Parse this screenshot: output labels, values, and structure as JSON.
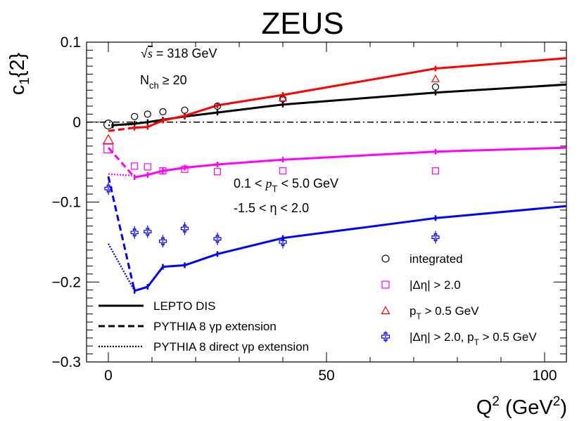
{
  "chart_data": {
    "type": "scatter",
    "title": "ZEUS",
    "xlabel": "Q",
    "xlabel_sup": "2",
    "xlabel_units": "(GeV",
    "xlabel_units_sup": "2",
    "xlabel_units_close": ")",
    "ylabel": "c",
    "ylabel_sub": "1",
    "ylabel_suffix": "{2}",
    "xlim": [
      -5,
      105
    ],
    "ylim": [
      -0.3,
      0.1
    ],
    "xticks": [
      0,
      50,
      100
    ],
    "yticks": [
      0.1,
      0,
      -0.1,
      -0.2,
      -0.3
    ],
    "xtick_labels": [
      "0",
      "50",
      "100"
    ],
    "ytick_labels": [
      "0.1",
      "0",
      "−0.1",
      "−0.2",
      "−0.3"
    ],
    "annotations": {
      "energy_prefix": "√",
      "energy_sym": "s",
      "energy_rest": " = 318 GeV",
      "nch_main": "N",
      "nch_sub": "ch",
      "nch_rest": " ≥ 20",
      "pt_range_left": "0.1 < ",
      "pt_range_sym": "p",
      "pt_range_sub": "T",
      "pt_range_right": " < 5.0 GeV",
      "eta_range": "-1.5 < η < 2.0"
    },
    "model_curves": [
      {
        "name": "LEPTO DIS",
        "style": "solid",
        "color": "#000000",
        "x": [
          1,
          6,
          9,
          12.5,
          17.5,
          25,
          40,
          75,
          105
        ],
        "y": [
          -0.004,
          -0.002,
          0.0,
          0.003,
          0.007,
          0.012,
          0.022,
          0.037,
          0.047
        ]
      },
      {
        "name": "LEPTO DIS",
        "style": "solid",
        "color": "#ff0000",
        "x": [
          6,
          9,
          12.5,
          17.5,
          25,
          40,
          75,
          105
        ],
        "y": [
          -0.007,
          -0.006,
          0.002,
          0.008,
          0.021,
          0.034,
          0.067,
          0.08
        ]
      },
      {
        "name": "LEPTO DIS",
        "style": "solid",
        "color": "#ff00ff",
        "x": [
          6,
          9,
          12.5,
          17.5,
          25,
          40,
          75,
          105
        ],
        "y": [
          -0.069,
          -0.066,
          -0.061,
          -0.057,
          -0.053,
          -0.047,
          -0.037,
          -0.032
        ]
      },
      {
        "name": "LEPTO DIS",
        "style": "solid",
        "color": "#0000ff",
        "x": [
          6,
          9,
          12.5,
          17.5,
          25,
          40,
          75,
          105
        ],
        "y": [
          -0.211,
          -0.206,
          -0.181,
          -0.179,
          -0.165,
          -0.145,
          -0.12,
          -0.105
        ]
      },
      {
        "name": "PYTHIA 8 γp extension",
        "style": "dashed",
        "color": "#ff0000",
        "x": [
          0,
          6
        ],
        "y": [
          -0.011,
          -0.007
        ]
      },
      {
        "name": "PYTHIA 8 γp extension",
        "style": "dashed",
        "color": "#ff00ff",
        "x": [
          0,
          6
        ],
        "y": [
          -0.032,
          -0.069
        ]
      },
      {
        "name": "PYTHIA 8 γp extension",
        "style": "dashed",
        "color": "#0000ff",
        "x": [
          0,
          6
        ],
        "y": [
          -0.068,
          -0.211
        ]
      },
      {
        "name": "PYTHIA 8 direct γp extension",
        "style": "dotted",
        "color": "#000000",
        "x": [
          0,
          6
        ],
        "y": [
          -0.004,
          -0.003
        ]
      },
      {
        "name": "PYTHIA 8 direct γp extension",
        "style": "dotted",
        "color": "#ff00ff",
        "x": [
          0,
          6
        ],
        "y": [
          -0.065,
          -0.067
        ]
      },
      {
        "name": "PYTHIA 8 direct γp extension",
        "style": "dotted",
        "color": "#0000ff",
        "x": [
          0,
          6
        ],
        "y": [
          -0.152,
          -0.211
        ]
      }
    ],
    "series": [
      {
        "name": "integrated",
        "marker": "circle",
        "color": "#000000",
        "x": [
          0,
          6,
          9,
          12.5,
          17.5,
          25,
          40,
          75
        ],
        "y": [
          -0.003,
          0.007,
          0.01,
          0.013,
          0.015,
          0.02,
          0.029,
          0.044
        ]
      },
      {
        "name": "|Δη| > 2.0",
        "marker": "square",
        "color": "#ff00ff",
        "x": [
          0,
          6,
          9,
          12.5,
          17.5,
          25,
          40,
          75
        ],
        "y": [
          -0.033,
          -0.055,
          -0.056,
          -0.061,
          -0.059,
          -0.062,
          -0.061,
          -0.061
        ]
      },
      {
        "name": "p_T > 0.5 GeV",
        "marker": "triangle",
        "color": "#ff0000",
        "x": [
          0,
          40,
          75
        ],
        "y": [
          -0.022,
          0.03,
          0.054
        ]
      },
      {
        "name": "|Δη| > 2.0, p_T > 0.5 GeV",
        "marker": "cross",
        "color": "#0000ff",
        "x": [
          0,
          6,
          9,
          12.5,
          17.5,
          25,
          40,
          75
        ],
        "y": [
          -0.083,
          -0.138,
          -0.137,
          -0.149,
          -0.133,
          -0.146,
          -0.15,
          -0.144
        ]
      }
    ],
    "legend_left": [
      {
        "label": "LEPTO DIS",
        "style": "solid"
      },
      {
        "label": "PYTHIA 8 γp extension",
        "style": "dashed"
      },
      {
        "label": "PYTHIA 8 direct γp extension",
        "style": "dotted"
      }
    ],
    "legend_right": [
      {
        "label": "integrated",
        "marker": "circle",
        "color": "#000000"
      },
      {
        "label": "|Δη| > 2.0",
        "marker": "square",
        "color": "#ff00ff"
      },
      {
        "label_main": "p",
        "label_sub": "T",
        "label_rest": " > 0.5 GeV",
        "marker": "triangle",
        "color": "#ff0000"
      },
      {
        "label_pre": "|Δη| > 2.0, p",
        "label_sub": "T",
        "label_rest": " > 0.5 GeV",
        "marker": "cross",
        "color": "#0000ff"
      }
    ]
  }
}
